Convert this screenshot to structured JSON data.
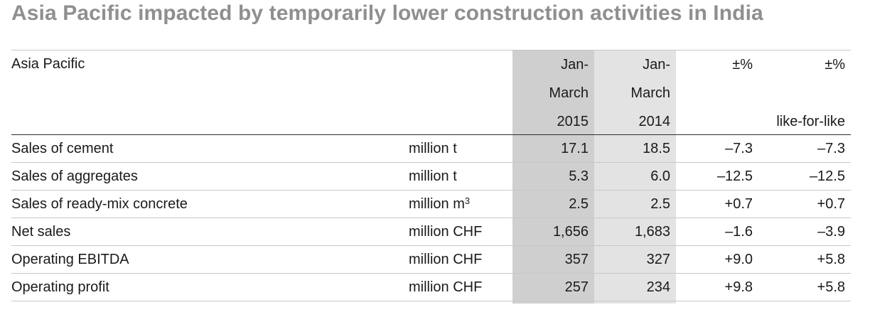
{
  "title": "Asia Pacific impacted by temporarily lower construction activities in India",
  "table": {
    "header": {
      "label": "Asia Pacific",
      "col_2015": [
        "Jan-",
        "March",
        "2015"
      ],
      "col_2014": [
        "Jan-",
        "March",
        "2014"
      ],
      "col_pct": [
        "±%",
        "",
        ""
      ],
      "col_lfl": [
        "±%",
        "",
        "like-for-like"
      ]
    },
    "rows": [
      {
        "label": "Sales of cement",
        "unit": "million t",
        "v2015": "17.1",
        "v2014": "18.5",
        "pct": "–7.3",
        "lfl": "–7.3"
      },
      {
        "label": "Sales of aggregates",
        "unit": "million t",
        "v2015": "5.3",
        "v2014": "6.0",
        "pct": "–12.5",
        "lfl": "–12.5"
      },
      {
        "label": "Sales of ready-mix concrete",
        "unit": "million m",
        "unit_sup": "3",
        "v2015": "2.5",
        "v2014": "2.5",
        "pct": "+0.7",
        "lfl": "+0.7"
      },
      {
        "label": "Net sales",
        "unit": "million CHF",
        "v2015": "1,656",
        "v2014": "1,683",
        "pct": "–1.6",
        "lfl": "–3.9"
      },
      {
        "label": "Operating EBITDA",
        "unit": "million CHF",
        "v2015": "357",
        "v2014": "327",
        "pct": "+9.0",
        "lfl": "+5.8"
      },
      {
        "label": "Operating profit",
        "unit": "million CHF",
        "v2015": "257",
        "v2014": "234",
        "pct": "+9.8",
        "lfl": "+5.8"
      }
    ]
  },
  "colors": {
    "title": "#8f8f8f",
    "shade_2015": "#cfcfcf",
    "shade_2014": "#e3e3e3"
  }
}
